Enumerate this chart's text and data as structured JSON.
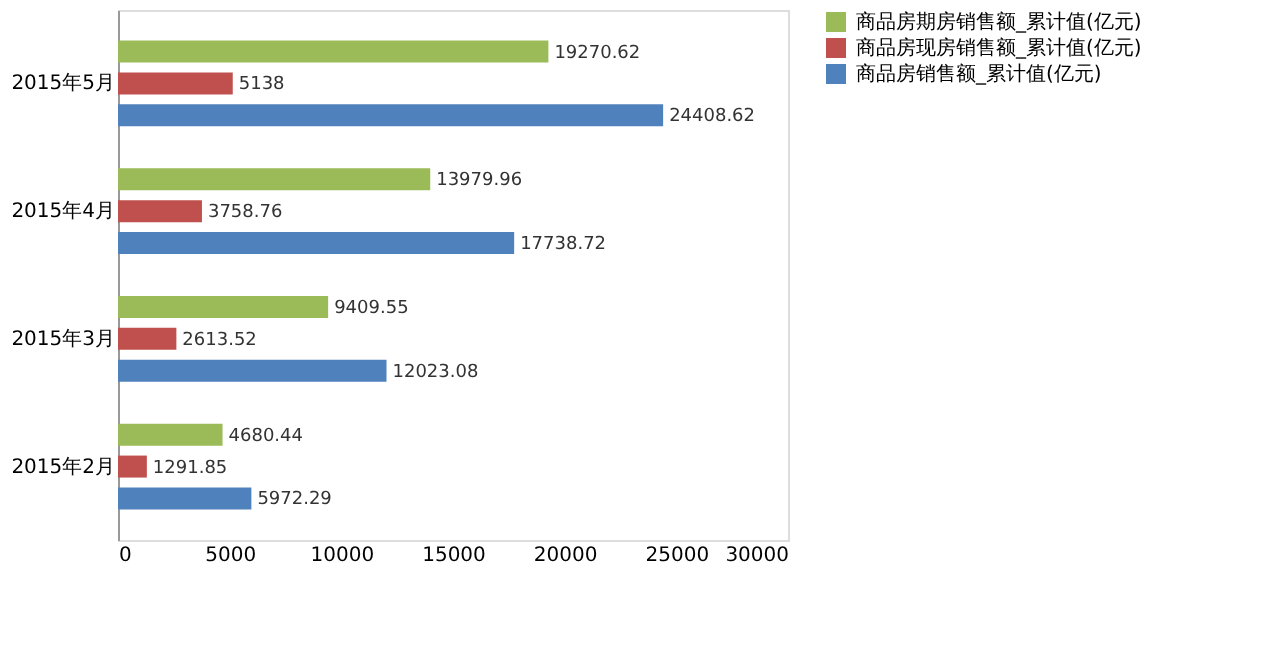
{
  "chart_data": {
    "type": "bar",
    "orientation": "horizontal",
    "categories": [
      "2015年5月",
      "2015年4月",
      "2015年3月",
      "2015年2月"
    ],
    "series": [
      {
        "name": "商品房期房销售额_累计值(亿元)",
        "color": "#9bbb59",
        "values": [
          19270.62,
          13979.96,
          9409.55,
          4680.44
        ]
      },
      {
        "name": "商品房现房销售额_累计值(亿元)",
        "color": "#c0504d",
        "values": [
          5138,
          3758.76,
          2613.52,
          1291.85
        ]
      },
      {
        "name": "商品房销售额_累计值(亿元)",
        "color": "#4f81bd",
        "values": [
          24408.62,
          17738.72,
          12023.08,
          5972.29
        ]
      }
    ],
    "xlim": [
      0,
      30000
    ],
    "xticks": [
      0,
      5000,
      10000,
      15000,
      20000,
      25000,
      30000
    ],
    "data_labels": true,
    "legend": "right",
    "grid": false
  }
}
